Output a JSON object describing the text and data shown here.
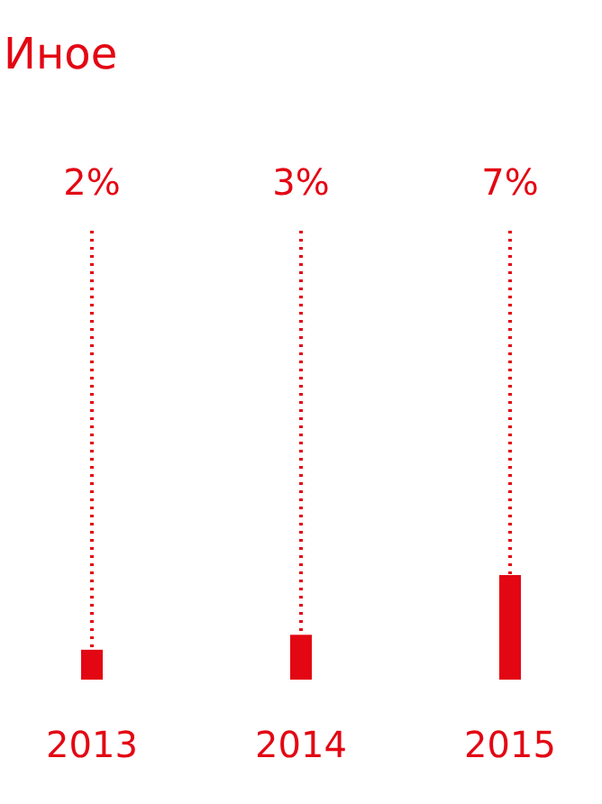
{
  "chart_data": {
    "type": "bar",
    "title": "Иное",
    "categories": [
      "2013",
      "2014",
      "2015"
    ],
    "values": [
      2,
      3,
      7
    ],
    "value_labels": [
      "2%",
      "3%",
      "7%"
    ],
    "color": "#e30613"
  }
}
